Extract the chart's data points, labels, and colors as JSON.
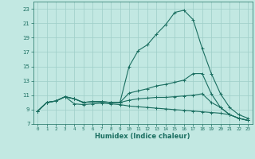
{
  "xlabel": "Humidex (Indice chaleur)",
  "xlim": [
    -0.5,
    23.5
  ],
  "ylim": [
    7,
    24
  ],
  "yticks": [
    7,
    9,
    11,
    13,
    15,
    17,
    19,
    21,
    23
  ],
  "xticks": [
    0,
    1,
    2,
    3,
    4,
    5,
    6,
    7,
    8,
    9,
    10,
    11,
    12,
    13,
    14,
    15,
    16,
    17,
    18,
    19,
    20,
    21,
    22,
    23
  ],
  "bg_color": "#c2e8e2",
  "grid_color": "#9ecec8",
  "line_color": "#1a6e60",
  "line1_x": [
    0,
    1,
    2,
    3,
    4,
    5,
    6,
    7,
    8,
    9,
    10,
    11,
    12,
    13,
    14,
    15,
    16,
    17,
    18,
    19,
    20,
    21,
    22,
    23
  ],
  "line1_y": [
    8.8,
    10.0,
    10.2,
    10.8,
    10.5,
    10.0,
    10.1,
    10.1,
    10.0,
    10.0,
    15.0,
    17.2,
    18.0,
    19.5,
    20.8,
    22.5,
    22.8,
    21.5,
    17.5,
    14.0,
    11.2,
    9.3,
    8.3,
    7.8
  ],
  "line2_x": [
    0,
    1,
    2,
    3,
    4,
    5,
    6,
    7,
    8,
    9,
    10,
    11,
    12,
    13,
    14,
    15,
    16,
    17,
    18,
    19,
    20,
    21,
    22,
    23
  ],
  "line2_y": [
    8.8,
    10.0,
    10.2,
    10.8,
    10.5,
    10.0,
    10.1,
    10.1,
    10.0,
    10.0,
    11.3,
    11.6,
    11.9,
    12.3,
    12.5,
    12.8,
    13.1,
    14.0,
    14.0,
    11.2,
    9.3,
    8.3,
    7.8,
    7.5
  ],
  "line3_x": [
    0,
    1,
    2,
    3,
    4,
    5,
    6,
    7,
    8,
    9,
    10,
    11,
    12,
    13,
    14,
    15,
    16,
    17,
    18,
    19,
    20,
    21,
    22,
    23
  ],
  "line3_y": [
    8.8,
    10.0,
    10.2,
    10.8,
    10.5,
    10.0,
    10.1,
    10.1,
    10.0,
    10.0,
    10.3,
    10.5,
    10.6,
    10.7,
    10.7,
    10.8,
    10.9,
    11.0,
    11.2,
    10.0,
    9.3,
    8.3,
    7.8,
    7.5
  ],
  "line4_x": [
    0,
    1,
    2,
    3,
    4,
    5,
    6,
    7,
    8,
    9,
    10,
    11,
    12,
    13,
    14,
    15,
    16,
    17,
    18,
    19,
    20,
    21,
    22,
    23
  ],
  "line4_y": [
    8.8,
    10.0,
    10.2,
    10.8,
    9.8,
    9.7,
    9.8,
    9.9,
    9.8,
    9.7,
    9.5,
    9.4,
    9.3,
    9.2,
    9.1,
    9.0,
    8.9,
    8.8,
    8.7,
    8.6,
    8.5,
    8.3,
    7.8,
    7.5
  ]
}
